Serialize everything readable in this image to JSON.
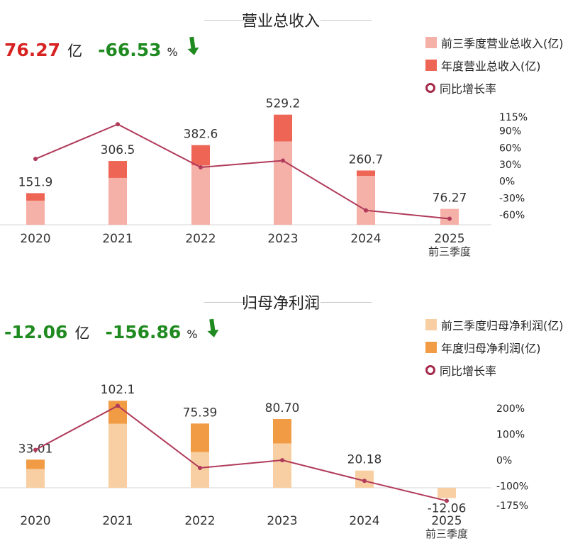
{
  "colors": {
    "revenue_q3": "#f5b0a8",
    "revenue_year": "#ee6555",
    "profit_q3": "#f8cfa3",
    "profit_year": "#f29b45",
    "growth_line": "#b03a5a",
    "value_red": "#d72222",
    "value_green": "#1f8a1f"
  },
  "panels": {
    "revenue": {
      "title": "营业总收入",
      "headline_value": "76.27",
      "headline_unit": "亿",
      "headline_pct": "-66.53",
      "headline_pct_sym": "%",
      "arrow_icon": "down-arrow-icon",
      "legend": [
        "前三季度营业总收入(亿)",
        "年度营业总收入(亿)",
        "同比增长率"
      ]
    },
    "profit": {
      "title": "归母净利润",
      "headline_value": "-12.06",
      "headline_unit": "亿",
      "headline_pct": "-156.86",
      "headline_pct_sym": "%",
      "arrow_icon": "down-arrow-icon",
      "legend": [
        "前三季度归母净利润(亿)",
        "年度归母净利润(亿)",
        "同比增长率"
      ]
    }
  },
  "chart_data": [
    {
      "type": "bar",
      "title": "营业总收入",
      "categories": [
        "2020",
        "2021",
        "2022",
        "2023",
        "2024",
        "2025"
      ],
      "category_sublabels": [
        "",
        "",
        "",
        "",
        "",
        "前三季度"
      ],
      "series": [
        {
          "name": "前三季度营业总收入(亿)",
          "values": [
            115,
            225,
            285,
            400,
            235,
            76.27
          ]
        },
        {
          "name": "年度营业总收入(亿)",
          "values": [
            151.9,
            306.5,
            382.6,
            529.2,
            260.7,
            null
          ]
        },
        {
          "name": "同比增长率",
          "axis": "right",
          "values": [
            40,
            102,
            25,
            37,
            -52,
            -67
          ]
        }
      ],
      "data_labels": [
        "151.9",
        "306.5",
        "382.6",
        "529.2",
        "260.7",
        "76.27"
      ],
      "right_axis_ticks": [
        "115%",
        "90%",
        "60%",
        "30%",
        "0%",
        "-30%",
        "-60%"
      ],
      "right_axis_values": [
        115,
        90,
        60,
        30,
        0,
        -30,
        -60
      ],
      "ylim_left": [
        0,
        620
      ],
      "ylim_right": [
        -78,
        128
      ]
    },
    {
      "type": "bar",
      "title": "归母净利润",
      "categories": [
        "2020",
        "2021",
        "2022",
        "2023",
        "2024",
        "2025"
      ],
      "category_sublabels": [
        "",
        "",
        "",
        "",
        "",
        "前三季度"
      ],
      "series": [
        {
          "name": "前三季度归母净利润(亿)",
          "values": [
            22,
            75,
            42,
            52,
            20.18,
            -12.06
          ]
        },
        {
          "name": "年度归母净利润(亿)",
          "values": [
            33.01,
            102.1,
            75.39,
            80.7,
            20.18,
            null
          ]
        },
        {
          "name": "同比增长率",
          "axis": "right",
          "values": [
            40,
            210,
            -30,
            0,
            -80,
            -157
          ]
        }
      ],
      "data_labels": [
        "33.01",
        "102.1",
        "75.39",
        "80.70",
        "20.18",
        "-12.06"
      ],
      "right_axis_ticks": [
        "200%",
        "100%",
        "0%",
        "-100%",
        "-175%"
      ],
      "right_axis_values": [
        200,
        100,
        0,
        -100,
        -175
      ],
      "ylim_left": [
        -20,
        125
      ],
      "ylim_right": [
        -175,
        230
      ]
    }
  ]
}
